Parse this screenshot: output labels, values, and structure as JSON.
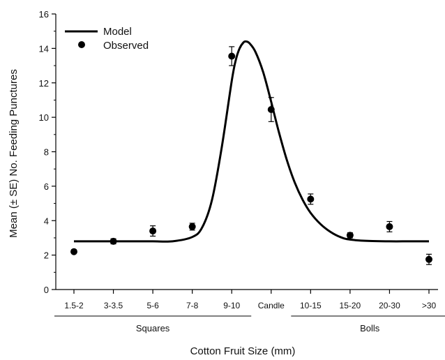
{
  "chart_data": {
    "type": "scatter",
    "title": "",
    "xlabel": "Cotton Fruit Size (mm)",
    "ylabel": "Mean (± SE) No. Feeding Punctures",
    "ylim": [
      0,
      16
    ],
    "yticks": [
      "0",
      "2",
      "4",
      "6",
      "8",
      "10",
      "12",
      "14",
      "16"
    ],
    "categories": [
      "1.5-2",
      "3-3.5",
      "5-6",
      "7-8",
      "9-10",
      "Candle",
      "10-15",
      "15-20",
      "20-30",
      ">30"
    ],
    "groups": [
      {
        "label": "Squares",
        "from": 0,
        "to": 4
      },
      {
        "label": "Bolls",
        "from": 6,
        "to": 9
      }
    ],
    "legend": {
      "position": "top-left",
      "model_label": "Model",
      "observed_label": "Observed"
    },
    "series": [
      {
        "name": "Observed",
        "values": [
          2.2,
          2.8,
          3.4,
          3.65,
          13.55,
          10.45,
          5.25,
          3.15,
          3.65,
          1.75
        ],
        "se": [
          0.0,
          0.15,
          0.3,
          0.2,
          0.55,
          0.7,
          0.3,
          0.15,
          0.3,
          0.3
        ]
      },
      {
        "name": "Model",
        "baseline": 2.8,
        "peak": 14.4,
        "peak_x": 4.37,
        "curve_x": [
          0,
          0.5,
          1,
          1.5,
          2,
          2.5,
          3,
          3.25,
          3.5,
          3.75,
          4,
          4.1,
          4.2,
          4.3,
          4.37,
          4.45,
          4.6,
          4.8,
          5,
          5.2,
          5.4,
          5.6,
          5.8,
          6,
          6.25,
          6.5,
          6.75,
          7,
          7.5,
          8,
          8.5,
          9
        ],
        "curve_y": [
          2.8,
          2.8,
          2.8,
          2.8,
          2.8,
          2.8,
          3.05,
          3.6,
          5.2,
          8.3,
          12.1,
          13.3,
          14.0,
          14.35,
          14.4,
          14.3,
          13.8,
          12.6,
          10.9,
          9.1,
          7.5,
          6.2,
          5.2,
          4.45,
          3.8,
          3.35,
          3.05,
          2.9,
          2.82,
          2.8,
          2.8,
          2.8
        ]
      }
    ]
  }
}
